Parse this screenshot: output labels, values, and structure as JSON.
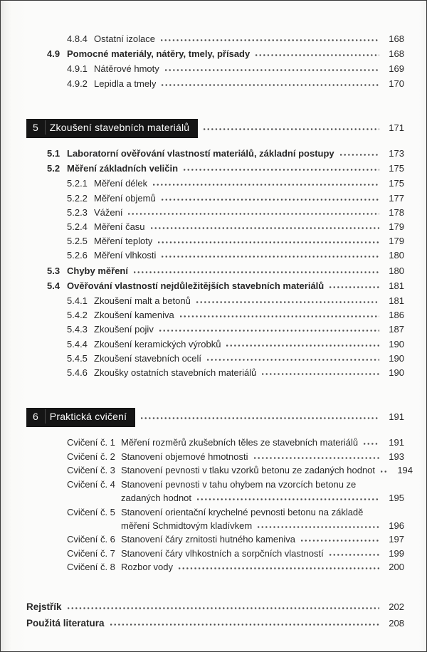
{
  "toc": {
    "rows": [
      {
        "type": "subsection",
        "num": "4.8.4",
        "label": "Ostatní izolace",
        "page": "168"
      },
      {
        "type": "section",
        "num": "4.9",
        "label": "Pomocné materiály, nátěry, tmely, přísady",
        "page": "168"
      },
      {
        "type": "subsection",
        "num": "4.9.1",
        "label": "Nátěrové hmoty",
        "page": "169"
      },
      {
        "type": "subsection",
        "num": "4.9.2",
        "label": "Lepidla a tmely",
        "page": "170"
      },
      {
        "type": "chapter",
        "num": "5",
        "label": "Zkoušení stavebních materiálů",
        "page": "171"
      },
      {
        "type": "section",
        "num": "5.1",
        "label": "Laboratorní ověřování vlastností materiálů, základní postupy",
        "page": "173"
      },
      {
        "type": "section",
        "num": "5.2",
        "label": "Měření základních veličin",
        "page": "175"
      },
      {
        "type": "subsection",
        "num": "5.2.1",
        "label": "Měření délek",
        "page": "175"
      },
      {
        "type": "subsection",
        "num": "5.2.2",
        "label": "Měření objemů",
        "page": "177"
      },
      {
        "type": "subsection",
        "num": "5.2.3",
        "label": "Vážení",
        "page": "178"
      },
      {
        "type": "subsection",
        "num": "5.2.4",
        "label": "Měření času",
        "page": "179"
      },
      {
        "type": "subsection",
        "num": "5.2.5",
        "label": "Měření teploty",
        "page": "179"
      },
      {
        "type": "subsection",
        "num": "5.2.6",
        "label": "Měření vlhkosti",
        "page": "180"
      },
      {
        "type": "section",
        "num": "5.3",
        "label": "Chyby měření",
        "page": "180"
      },
      {
        "type": "section",
        "num": "5.4",
        "label": "Ověřování vlastností nejdůležitějších stavebních materiálů",
        "page": "181"
      },
      {
        "type": "subsection",
        "num": "5.4.1",
        "label": "Zkoušení malt a betonů",
        "page": "181"
      },
      {
        "type": "subsection",
        "num": "5.4.2",
        "label": "Zkoušení kameniva",
        "page": "186"
      },
      {
        "type": "subsection",
        "num": "5.4.3",
        "label": "Zkoušení pojiv",
        "page": "187"
      },
      {
        "type": "subsection",
        "num": "5.4.4",
        "label": "Zkoušení keramických výrobků",
        "page": "190"
      },
      {
        "type": "subsection",
        "num": "5.4.5",
        "label": "Zkoušení stavebních ocelí",
        "page": "190"
      },
      {
        "type": "subsection",
        "num": "5.4.6",
        "label": "Zkoušky ostatních stavebních materiálů",
        "page": "190"
      },
      {
        "type": "chapter",
        "num": "6",
        "label": "Praktická cvičení",
        "page": "191"
      },
      {
        "type": "exercise",
        "num": "Cvičení č. 1",
        "label": "Měření rozměrů zkušebních těles ze stavebních materiálů",
        "page": "191"
      },
      {
        "type": "exercise",
        "num": "Cvičení č. 2",
        "label": "Stanovení objemové hmotnosti",
        "page": "193"
      },
      {
        "type": "exercise",
        "num": "Cvičení č. 3",
        "label": "Stanovení pevnosti v tlaku vzorků betonu ze zadaných hodnot",
        "page": "194"
      },
      {
        "type": "exercise",
        "num": "Cvičení č. 4",
        "label": "Stanovení pevnosti v tahu ohybem na vzorcích betonu ze",
        "label2": "zadaných hodnot",
        "page": "195"
      },
      {
        "type": "exercise",
        "num": "Cvičení č. 5",
        "label": "Stanovení orientační krychelné pevnosti betonu na základě",
        "label2": "měření Schmidtovým kladívkem",
        "page": "196"
      },
      {
        "type": "exercise",
        "num": "Cvičení č. 6",
        "label": "Stanovení čáry zrnitosti hutného kameniva",
        "page": "197"
      },
      {
        "type": "exercise",
        "num": "Cvičení č. 7",
        "label": "Stanovení čáry vlhkostních a sorpčních vlastností",
        "page": "199"
      },
      {
        "type": "exercise",
        "num": "Cvičení č. 8",
        "label": "Rozbor vody",
        "page": "200"
      },
      {
        "type": "backmatter",
        "num": "",
        "label": "Rejstřík",
        "page": "202"
      },
      {
        "type": "backmatter",
        "num": "",
        "label": "Použitá literatura",
        "page": "208"
      }
    ]
  },
  "colors": {
    "chapter_badge_bg": "#151515",
    "chapter_badge_text": "#fafafa",
    "body_text": "#282828",
    "page_background": "#fbfbfa"
  }
}
